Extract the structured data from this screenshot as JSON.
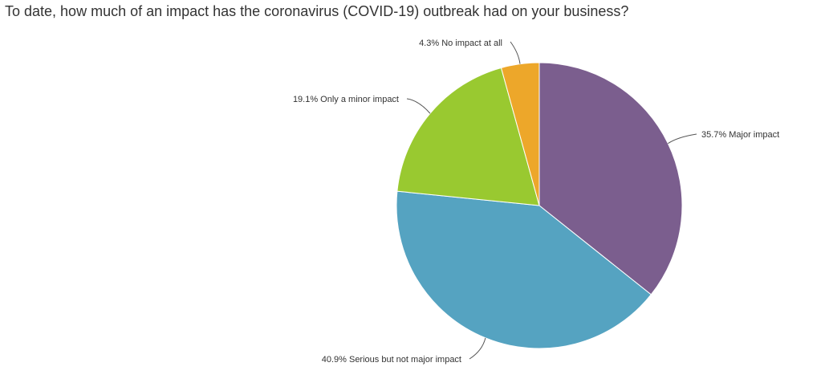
{
  "chart_data": {
    "type": "pie",
    "title": "To date, how much of an impact has the coronavirus (COVID-19) outbreak had on your business?",
    "slices": [
      {
        "label": "35.7% Major impact",
        "value": 35.7,
        "color": "#7b5e8e"
      },
      {
        "label": "40.9% Serious but not major impact",
        "value": 40.9,
        "color": "#55a3c1"
      },
      {
        "label": "19.1% Only a minor impact",
        "value": 19.1,
        "color": "#99c930"
      },
      {
        "label": "4.3% No impact at all",
        "value": 4.3,
        "color": "#eda72a"
      }
    ]
  }
}
